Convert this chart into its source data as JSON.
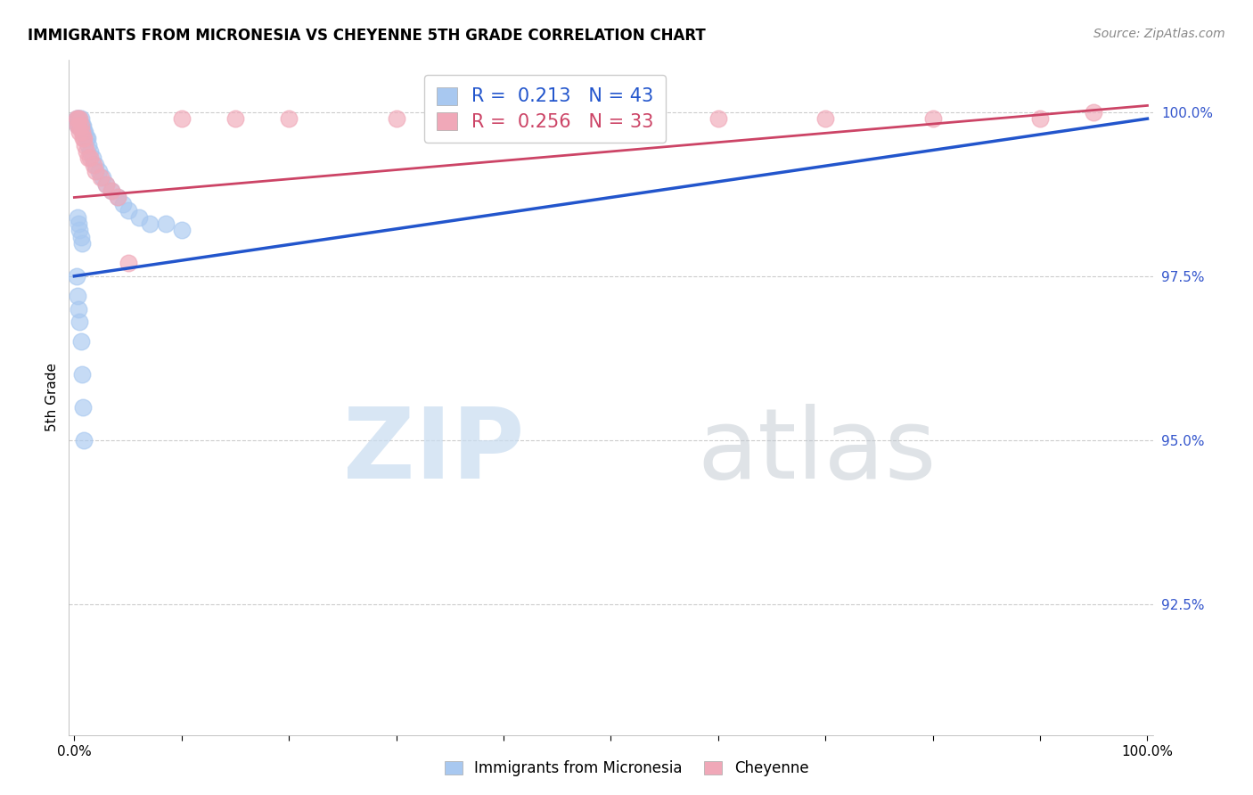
{
  "title": "IMMIGRANTS FROM MICRONESIA VS CHEYENNE 5TH GRADE CORRELATION CHART",
  "source": "Source: ZipAtlas.com",
  "ylabel": "5th Grade",
  "ytick_labels": [
    "100.0%",
    "97.5%",
    "95.0%",
    "92.5%"
  ],
  "ytick_values": [
    1.0,
    0.975,
    0.95,
    0.925
  ],
  "xlim": [
    0.0,
    1.0
  ],
  "ylim": [
    0.905,
    1.008
  ],
  "legend_label1": "R =  0.213   N = 43",
  "legend_label2": "R =  0.256   N = 33",
  "bottom_legend1": "Immigrants from Micronesia",
  "bottom_legend2": "Cheyenne",
  "blue_color": "#a8c8f0",
  "pink_color": "#f0a8b8",
  "blue_line_color": "#2255cc",
  "pink_line_color": "#cc4466",
  "blue_scatter_x": [
    0.002,
    0.003,
    0.003,
    0.004,
    0.005,
    0.005,
    0.006,
    0.006,
    0.007,
    0.008,
    0.008,
    0.009,
    0.01,
    0.011,
    0.012,
    0.013,
    0.015,
    0.017,
    0.02,
    0.023,
    0.026,
    0.03,
    0.035,
    0.04,
    0.045,
    0.05,
    0.06,
    0.07,
    0.085,
    0.1,
    0.003,
    0.004,
    0.005,
    0.006,
    0.007,
    0.002,
    0.003,
    0.004,
    0.005,
    0.006,
    0.007,
    0.008,
    0.009
  ],
  "blue_scatter_y": [
    0.999,
    0.999,
    0.998,
    0.999,
    0.999,
    0.998,
    0.999,
    0.998,
    0.998,
    0.998,
    0.997,
    0.997,
    0.997,
    0.996,
    0.996,
    0.995,
    0.994,
    0.993,
    0.992,
    0.991,
    0.99,
    0.989,
    0.988,
    0.987,
    0.986,
    0.985,
    0.984,
    0.983,
    0.983,
    0.982,
    0.984,
    0.983,
    0.982,
    0.981,
    0.98,
    0.975,
    0.972,
    0.97,
    0.968,
    0.965,
    0.96,
    0.955,
    0.95
  ],
  "pink_scatter_x": [
    0.002,
    0.003,
    0.003,
    0.004,
    0.005,
    0.005,
    0.006,
    0.007,
    0.008,
    0.009,
    0.01,
    0.011,
    0.013,
    0.015,
    0.018,
    0.02,
    0.025,
    0.03,
    0.035,
    0.04,
    0.05,
    0.1,
    0.15,
    0.2,
    0.3,
    0.35,
    0.4,
    0.5,
    0.6,
    0.7,
    0.8,
    0.9,
    0.95
  ],
  "pink_scatter_y": [
    0.999,
    0.999,
    0.998,
    0.998,
    0.999,
    0.997,
    0.998,
    0.997,
    0.996,
    0.996,
    0.995,
    0.994,
    0.993,
    0.993,
    0.992,
    0.991,
    0.99,
    0.989,
    0.988,
    0.987,
    0.977,
    0.999,
    0.999,
    0.999,
    0.999,
    0.999,
    0.999,
    0.999,
    0.999,
    0.999,
    0.999,
    0.999,
    1.0
  ],
  "blue_line_x0": 0.0,
  "blue_line_y0": 0.975,
  "blue_line_x1": 1.0,
  "blue_line_y1": 0.999,
  "pink_line_x0": 0.0,
  "pink_line_y0": 0.987,
  "pink_line_x1": 1.0,
  "pink_line_y1": 1.001
}
